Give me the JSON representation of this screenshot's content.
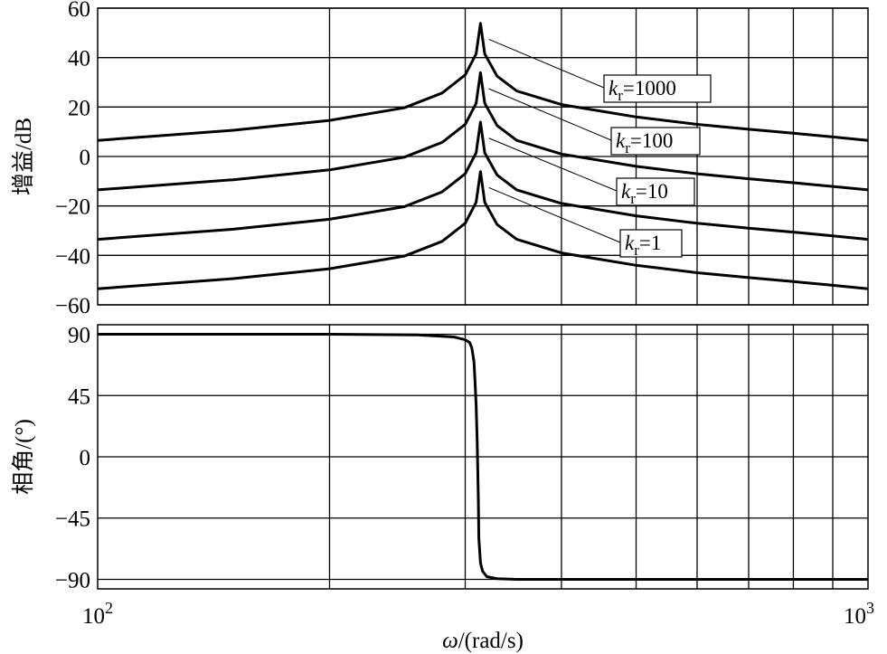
{
  "chart_data": [
    {
      "type": "line",
      "ylabel": "增益/dB",
      "xscale": "log",
      "xlim": [
        100,
        1000
      ],
      "ylim": [
        -60,
        60
      ],
      "yticks": [
        "60",
        "40",
        "20",
        "0",
        "−20",
        "−40",
        "−60"
      ],
      "ytick_values": [
        60,
        40,
        20,
        0,
        -20,
        -40,
        -60
      ],
      "grid": true,
      "series": [
        {
          "name": "kr=1000",
          "label_k": "k",
          "label_sub": "r",
          "label_rest": "=1000",
          "x": [
            100,
            150,
            200,
            250,
            280,
            300,
            310,
            314,
            318,
            330,
            350,
            400,
            500,
            600,
            700,
            800,
            900,
            1000
          ],
          "y": [
            6.5,
            10.6,
            14.6,
            19.7,
            25.7,
            33,
            41.5,
            53.9,
            41.5,
            32.5,
            26.5,
            21,
            16,
            13,
            11,
            9.4,
            7.9,
            6.5
          ]
        },
        {
          "name": "kr=100",
          "label_k": "k",
          "label_sub": "r",
          "label_rest": "=100",
          "x": [
            100,
            150,
            200,
            250,
            280,
            300,
            310,
            314,
            318,
            330,
            350,
            400,
            500,
            600,
            700,
            800,
            900,
            1000
          ],
          "y": [
            -13.5,
            -9.4,
            -5.4,
            -0.3,
            5.7,
            13,
            21.5,
            33.9,
            21.5,
            12.5,
            6.5,
            1,
            -4,
            -7,
            -9,
            -10.6,
            -12.1,
            -13.5
          ]
        },
        {
          "name": "kr=10",
          "label_k": "k",
          "label_sub": "r",
          "label_rest": "=10",
          "x": [
            100,
            150,
            200,
            250,
            280,
            300,
            310,
            314,
            318,
            330,
            350,
            400,
            500,
            600,
            700,
            800,
            900,
            1000
          ],
          "y": [
            -33.5,
            -29.4,
            -25.4,
            -20.3,
            -14.3,
            -7,
            1.5,
            13.9,
            1.5,
            -7.5,
            -13.5,
            -19,
            -24,
            -27,
            -29,
            -30.6,
            -32.1,
            -33.5
          ]
        },
        {
          "name": "kr=1",
          "label_k": "k",
          "label_sub": "r",
          "label_rest": "=1",
          "x": [
            100,
            150,
            200,
            250,
            280,
            300,
            310,
            314,
            318,
            330,
            350,
            400,
            500,
            600,
            700,
            800,
            900,
            1000
          ],
          "y": [
            -53.5,
            -49.4,
            -45.4,
            -40.3,
            -34.3,
            -27,
            -18.5,
            -6.1,
            -18.5,
            -27.5,
            -33.5,
            -39,
            -44,
            -47,
            -49,
            -50.6,
            -52.1,
            -53.5
          ]
        }
      ]
    },
    {
      "type": "line",
      "ylabel": "相角/(°)",
      "xlabel_sym": "ω",
      "xlabel_rest": "/(rad/s)",
      "xscale": "log",
      "xlim": [
        100,
        1000
      ],
      "ylim": [
        -97,
        97
      ],
      "yticks": [
        "90",
        "45",
        "0",
        "−45",
        "−90"
      ],
      "ytick_values": [
        90,
        45,
        0,
        -45,
        -90
      ],
      "xticks": [
        {
          "value": 100,
          "base": "10",
          "exp": "2"
        },
        {
          "value": 1000,
          "base": "10",
          "exp": "3"
        }
      ],
      "grid": true,
      "series": [
        {
          "x": [
            100,
            200,
            260,
            290,
            300,
            304,
            306,
            308,
            309,
            310,
            311,
            312,
            312.5,
            314,
            316,
            320,
            330,
            350,
            400,
            600,
            1000
          ],
          "y": [
            90,
            90,
            89.5,
            88,
            86,
            84,
            80,
            70,
            55,
            38,
            10,
            -30,
            -60,
            -78,
            -84,
            -88,
            -89.5,
            -90,
            -90,
            -90,
            -90
          ]
        }
      ]
    }
  ]
}
